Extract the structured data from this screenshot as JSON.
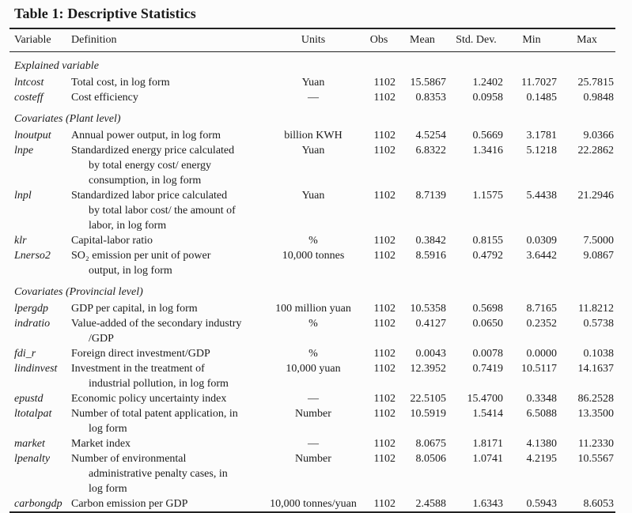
{
  "title": "Table 1: Descriptive Statistics",
  "colors": {
    "background": "#fcfcfc",
    "text": "#1b1b1b",
    "rule": "#222222"
  },
  "table": {
    "headers": [
      "Variable",
      "Definition",
      "Units",
      "Obs",
      "Mean",
      "Std. Dev.",
      "Min",
      "Max"
    ],
    "sections": [
      {
        "label": "Explained variable",
        "rows": [
          {
            "variable": "lntcost",
            "definition": [
              "Total cost, in log form"
            ],
            "units": "Yuan",
            "obs": "1102",
            "mean": "15.5867",
            "std": "1.2402",
            "min": "11.7027",
            "max": "25.7815"
          },
          {
            "variable": "costeff",
            "definition": [
              "Cost efficiency"
            ],
            "units": "—",
            "obs": "1102",
            "mean": "0.8353",
            "std": "0.0958",
            "min": "0.1485",
            "max": "0.9848"
          }
        ]
      },
      {
        "label": "Covariates (Plant level)",
        "rows": [
          {
            "variable": "lnoutput",
            "definition": [
              "Annual power output, in log form"
            ],
            "units": "billion KWH",
            "obs": "1102",
            "mean": "4.5254",
            "std": "0.5669",
            "min": "3.1781",
            "max": "9.0366"
          },
          {
            "variable": "lnpe",
            "definition": [
              "Standardized energy price calculated",
              "by total energy cost/ energy",
              "consumption, in log form"
            ],
            "units": "Yuan",
            "obs": "1102",
            "mean": "6.8322",
            "std": "1.3416",
            "min": "5.1218",
            "max": "22.2862"
          },
          {
            "variable": "lnpl",
            "definition": [
              "Standardized labor price calculated",
              "by total labor cost/ the amount of",
              "labor, in log form"
            ],
            "units": "Yuan",
            "obs": "1102",
            "mean": "8.7139",
            "std": "1.1575",
            "min": "5.4438",
            "max": "21.2946"
          },
          {
            "variable": "klr",
            "definition": [
              "Capital-labor ratio"
            ],
            "units": "%",
            "obs": "1102",
            "mean": "0.3842",
            "std": "0.8155",
            "min": "0.0309",
            "max": "7.5000"
          },
          {
            "variable": "Lnerso2",
            "definition": [
              "SO₂ emission per unit of power",
              "output, in log form"
            ],
            "units": "10,000 tonnes",
            "obs": "1102",
            "mean": "8.5916",
            "std": "0.4792",
            "min": "3.6442",
            "max": "9.0867"
          }
        ]
      },
      {
        "label": "Covariates (Provincial level)",
        "rows": [
          {
            "variable": "lpergdp",
            "definition": [
              "GDP per capital, in log form"
            ],
            "units": "100 million yuan",
            "obs": "1102",
            "mean": "10.5358",
            "std": "0.5698",
            "min": "8.7165",
            "max": "11.8212"
          },
          {
            "variable": "indratio",
            "definition": [
              "Value-added of the secondary industry",
              "/GDP"
            ],
            "units": "%",
            "obs": "1102",
            "mean": "0.4127",
            "std": "0.0650",
            "min": "0.2352",
            "max": "0.5738"
          },
          {
            "variable": "fdi_r",
            "definition": [
              "Foreign direct investment/GDP"
            ],
            "units": "%",
            "obs": "1102",
            "mean": "0.0043",
            "std": "0.0078",
            "min": "0.0000",
            "max": "0.1038"
          },
          {
            "variable": "lindinvest",
            "definition": [
              "Investment in the treatment of",
              "industrial pollution, in log form"
            ],
            "units": "10,000 yuan",
            "obs": "1102",
            "mean": "12.3952",
            "std": "0.7419",
            "min": "10.5117",
            "max": "14.1637"
          },
          {
            "variable": "epustd",
            "definition": [
              "Economic policy uncertainty index"
            ],
            "units": "—",
            "obs": "1102",
            "mean": "22.5105",
            "std": "15.4700",
            "min": "0.3348",
            "max": "86.2528"
          },
          {
            "variable": "ltotalpat",
            "definition": [
              "Number of total patent application, in",
              "log form"
            ],
            "units": "Number",
            "obs": "1102",
            "mean": "10.5919",
            "std": "1.5414",
            "min": "6.5088",
            "max": "13.3500"
          },
          {
            "variable": "market",
            "definition": [
              "Market index"
            ],
            "units": "—",
            "obs": "1102",
            "mean": "8.0675",
            "std": "1.8171",
            "min": "4.1380",
            "max": "11.2330"
          },
          {
            "variable": "lpenalty",
            "definition": [
              "Number of environmental",
              "administrative penalty cases, in",
              "log form"
            ],
            "units": "Number",
            "obs": "1102",
            "mean": "8.0506",
            "std": "1.0741",
            "min": "4.2195",
            "max": "10.5567"
          },
          {
            "variable": "carbongdp",
            "definition": [
              "Carbon emission per GDP"
            ],
            "units": "10,000 tonnes/yuan",
            "obs": "1102",
            "mean": "2.4588",
            "std": "1.6343",
            "min": "0.5943",
            "max": "8.6053"
          }
        ]
      }
    ]
  }
}
